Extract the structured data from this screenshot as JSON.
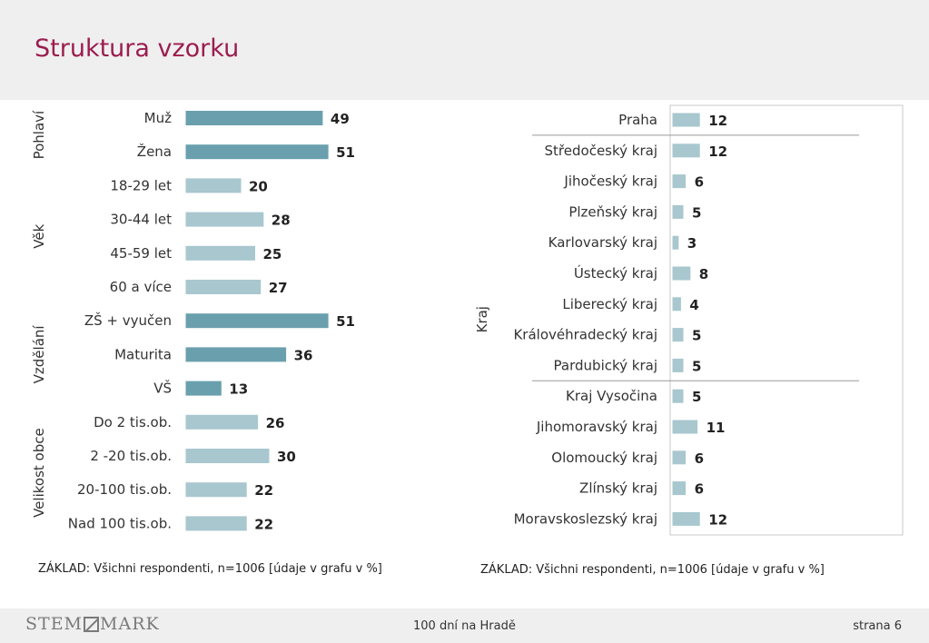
{
  "page": {
    "title": "Struktura vzorku",
    "footer_center": "100 dní na Hradě",
    "footer_right": "strana 6",
    "logo_left": "STEM",
    "logo_right": "MARK"
  },
  "notes": {
    "left": "ZÁKLAD: Všichni respondenti, n=1006 [údaje v grafu v %]",
    "right": "ZÁKLAD: Všichni respondenti, n=1006 [údaje v grafu v %]"
  },
  "colors": {
    "title": "#9b1d4f",
    "bar_dark": "#6aa0ad",
    "bar_light": "#a8c7ce"
  },
  "chart_data": [
    {
      "type": "bar",
      "orientation": "horizontal",
      "groups": [
        {
          "label": "Pohlaví",
          "shade": "dark",
          "categories": [
            "Muž",
            "Žena"
          ],
          "values": [
            49,
            51
          ]
        },
        {
          "label": "Věk",
          "shade": "light",
          "categories": [
            "18-29 let",
            "30-44 let",
            "45-59 let",
            "60 a více"
          ],
          "values": [
            20,
            28,
            25,
            27
          ]
        },
        {
          "label": "Vzdělání",
          "shade": "dark",
          "categories": [
            "ZŠ + vyučen",
            "Maturita",
            "VŠ"
          ],
          "values": [
            51,
            36,
            13
          ]
        },
        {
          "label": "Velikost obce",
          "shade": "light",
          "categories": [
            "Do 2 tis.ob.",
            "2 -20 tis.ob.",
            "20-100 tis.ob.",
            "Nad 100 tis.ob."
          ],
          "values": [
            26,
            30,
            22,
            22
          ]
        }
      ],
      "xlim": [
        0,
        100
      ]
    },
    {
      "type": "bar",
      "orientation": "horizontal",
      "ylabel": "Kraj",
      "categories": [
        "Praha",
        "Středočeský kraj",
        "Jihočeský kraj",
        "Plzeňský kraj",
        "Karlovarský kraj",
        "Ústecký kraj",
        "Liberecký kraj",
        "Královéhradecký kraj",
        "Pardubický kraj",
        "Kraj Vysočina",
        "Jihomoravský kraj",
        "Olomoucký kraj",
        "Zlínský kraj",
        "Moravskoslezský kraj"
      ],
      "values": [
        12,
        12,
        6,
        5,
        3,
        8,
        4,
        5,
        5,
        5,
        11,
        6,
        6,
        12
      ],
      "separators_after": [
        0,
        8
      ],
      "xlim": [
        0,
        100
      ]
    }
  ]
}
